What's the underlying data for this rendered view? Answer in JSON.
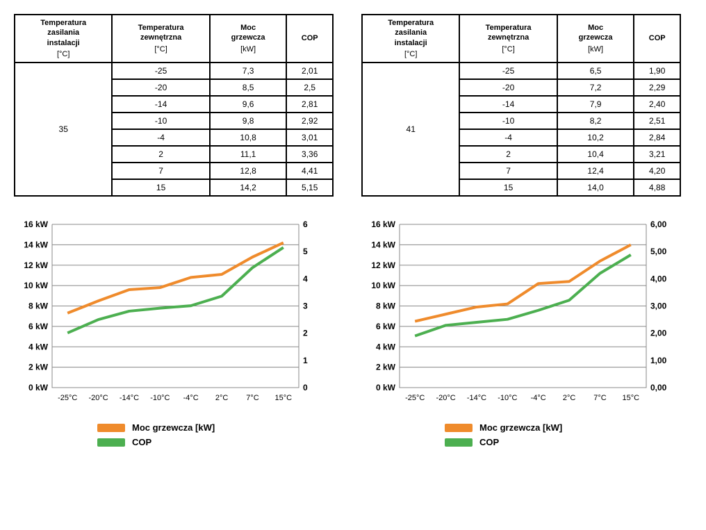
{
  "colors": {
    "moc": "#ef8b2c",
    "cop": "#4caf50",
    "grid": "#888888",
    "axis": "#000000",
    "bg": "#ffffff",
    "text": "#000000"
  },
  "table_headers": {
    "h1_line1": "Temperatura",
    "h1_line2": "zasilania",
    "h1_line3": "instalacji",
    "h1_unit": "[°C]",
    "h2_line1": "Temperatura",
    "h2_line2": "zewnętrzna",
    "h2_unit": "[°C]",
    "h3_line1": "Moc",
    "h3_line2": "grzewcza",
    "h3_unit": "[kW]",
    "h4": "COP"
  },
  "panels": [
    {
      "supply_temp": "35",
      "rows": [
        {
          "ext": "-25",
          "moc": "7,3",
          "cop": "2,01"
        },
        {
          "ext": "-20",
          "moc": "8,5",
          "cop": "2,5"
        },
        {
          "ext": "-14",
          "moc": "9,6",
          "cop": "2,81"
        },
        {
          "ext": "-10",
          "moc": "9,8",
          "cop": "2,92"
        },
        {
          "ext": "-4",
          "moc": "10,8",
          "cop": "3,01"
        },
        {
          "ext": "2",
          "moc": "11,1",
          "cop": "3,36"
        },
        {
          "ext": "7",
          "moc": "12,8",
          "cop": "4,41"
        },
        {
          "ext": "15",
          "moc": "14,2",
          "cop": "5,15"
        }
      ],
      "chart": {
        "x_labels": [
          "-25°C",
          "-20°C",
          "-14°C",
          "-10°C",
          "-4°C",
          "2°C",
          "7°C",
          "15°C"
        ],
        "moc_values": [
          7.3,
          8.5,
          9.6,
          9.8,
          10.8,
          11.1,
          12.8,
          14.2
        ],
        "cop_values": [
          2.01,
          2.5,
          2.81,
          2.92,
          3.01,
          3.36,
          4.41,
          5.15
        ],
        "left_axis": {
          "min": 0,
          "max": 16,
          "step": 2,
          "labels": [
            "0 kW",
            "2 kW",
            "4 kW",
            "6 kW",
            "8 kW",
            "10 kW",
            "12 kW",
            "14 kW",
            "16 kW"
          ]
        },
        "right_axis": {
          "min": 0,
          "max": 6,
          "step": 1,
          "labels": [
            "0",
            "1",
            "2",
            "3",
            "4",
            "5",
            "6"
          ]
        },
        "line_width": 4,
        "font_size": 12
      }
    },
    {
      "supply_temp": "41",
      "rows": [
        {
          "ext": "-25",
          "moc": "6,5",
          "cop": "1,90"
        },
        {
          "ext": "-20",
          "moc": "7,2",
          "cop": "2,29"
        },
        {
          "ext": "-14",
          "moc": "7,9",
          "cop": "2,40"
        },
        {
          "ext": "-10",
          "moc": "8,2",
          "cop": "2,51"
        },
        {
          "ext": "-4",
          "moc": "10,2",
          "cop": "2,84"
        },
        {
          "ext": "2",
          "moc": "10,4",
          "cop": "3,21"
        },
        {
          "ext": "7",
          "moc": "12,4",
          "cop": "4,20"
        },
        {
          "ext": "15",
          "moc": "14,0",
          "cop": "4,88"
        }
      ],
      "chart": {
        "x_labels": [
          "-25°C",
          "-20°C",
          "-14°C",
          "-10°C",
          "-4°C",
          "2°C",
          "7°C",
          "15°C"
        ],
        "moc_values": [
          6.5,
          7.2,
          7.9,
          8.2,
          10.2,
          10.4,
          12.4,
          14.0
        ],
        "cop_values": [
          1.9,
          2.29,
          2.4,
          2.51,
          2.84,
          3.21,
          4.2,
          4.88
        ],
        "left_axis": {
          "min": 0,
          "max": 16,
          "step": 2,
          "labels": [
            "0 kW",
            "2 kW",
            "4 kW",
            "6 kW",
            "8 kW",
            "10 kW",
            "12 kW",
            "14 kW",
            "16 kW"
          ]
        },
        "right_axis": {
          "min": 0,
          "max": 6,
          "step": 1,
          "labels": [
            "0,00",
            "1,00",
            "2,00",
            "3,00",
            "4,00",
            "5,00",
            "6,00"
          ]
        },
        "line_width": 4,
        "font_size": 12
      }
    }
  ],
  "legend": {
    "moc_label": "Moc grzewcza [kW]",
    "cop_label": "COP"
  }
}
